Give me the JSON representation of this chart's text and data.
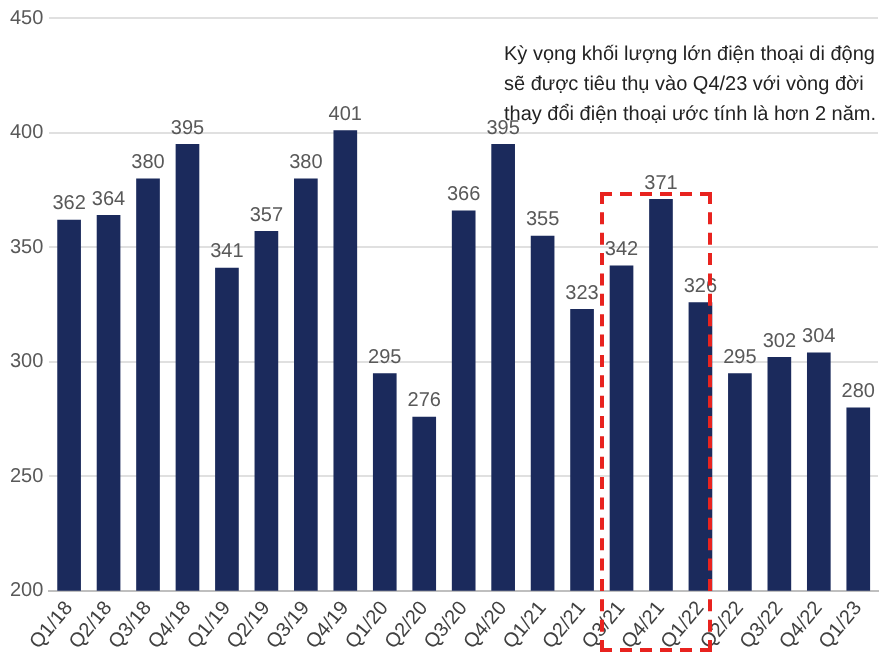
{
  "chart_data": {
    "type": "bar",
    "categories": [
      "Q1/18",
      "Q2/18",
      "Q3/18",
      "Q4/18",
      "Q1/19",
      "Q2/19",
      "Q3/19",
      "Q4/19",
      "Q1/20",
      "Q2/20",
      "Q3/20",
      "Q4/20",
      "Q1/21",
      "Q2/21",
      "Q3/21",
      "Q4/21",
      "Q1/22",
      "Q2/22",
      "Q3/22",
      "Q4/22",
      "Q1/23"
    ],
    "values": [
      362,
      364,
      380,
      395,
      341,
      357,
      380,
      401,
      295,
      276,
      366,
      395,
      355,
      323,
      342,
      371,
      326,
      295,
      302,
      304,
      280
    ],
    "color": "#1b2a5c",
    "ylim": [
      200,
      450
    ],
    "yticks": [
      200,
      250,
      300,
      350,
      400,
      450
    ],
    "grid": "y",
    "data_labels": true,
    "annotations": [
      "Kỳ vọng khối lượng lớn điện thoại di động sẽ được tiêu thụ vào Q4/23 với vòng đời thay đổi điện thoại ước tính là hơn 2 năm."
    ]
  }
}
